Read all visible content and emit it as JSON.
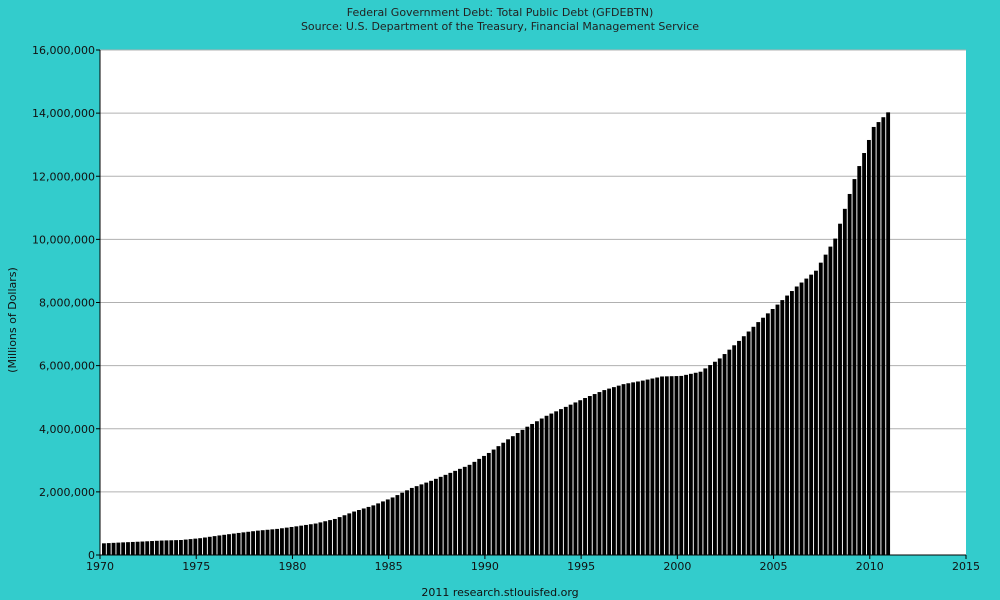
{
  "chart_data": {
    "type": "bar",
    "title": "Federal Government Debt: Total Public Debt (GFDEBTN)",
    "subtitle": "Source: U.S. Department of the Treasury, Financial Management Service",
    "ylabel": "(Millions of Dollars)",
    "xlabel": "",
    "credit": "2011 research.stlouisfed.org",
    "xlim": [
      1970,
      2015
    ],
    "ylim": [
      0,
      16000000
    ],
    "x_ticks": [
      "1970",
      "1975",
      "1980",
      "1985",
      "1990",
      "1995",
      "2000",
      "2005",
      "2010",
      "2015"
    ],
    "y_ticks": [
      "0",
      "2,000,000",
      "4,000,000",
      "6,000,000",
      "8,000,000",
      "10,000,000",
      "12,000,000",
      "14,000,000",
      "16,000,000"
    ],
    "grid": true,
    "frequency": "quarterly",
    "bar_color": "#000000",
    "plot_background": "#ffffff",
    "page_background": "#33cccc",
    "annual_anchors": [
      {
        "year": 1970,
        "value": 370000
      },
      {
        "year": 1971,
        "value": 400000
      },
      {
        "year": 1972,
        "value": 427000
      },
      {
        "year": 1973,
        "value": 458000
      },
      {
        "year": 1974,
        "value": 475000
      },
      {
        "year": 1975,
        "value": 533000
      },
      {
        "year": 1976,
        "value": 620000
      },
      {
        "year": 1977,
        "value": 699000
      },
      {
        "year": 1978,
        "value": 772000
      },
      {
        "year": 1979,
        "value": 827000
      },
      {
        "year": 1980,
        "value": 908000
      },
      {
        "year": 1981,
        "value": 997000
      },
      {
        "year": 1982,
        "value": 1142000
      },
      {
        "year": 1983,
        "value": 1377000
      },
      {
        "year": 1984,
        "value": 1572000
      },
      {
        "year": 1985,
        "value": 1823000
      },
      {
        "year": 1986,
        "value": 2125000
      },
      {
        "year": 1987,
        "value": 2350000
      },
      {
        "year": 1988,
        "value": 2602000
      },
      {
        "year": 1989,
        "value": 2857000
      },
      {
        "year": 1990,
        "value": 3233000
      },
      {
        "year": 1991,
        "value": 3665000
      },
      {
        "year": 1992,
        "value": 4065000
      },
      {
        "year": 1993,
        "value": 4411000
      },
      {
        "year": 1994,
        "value": 4693000
      },
      {
        "year": 1995,
        "value": 4974000
      },
      {
        "year": 1996,
        "value": 5225000
      },
      {
        "year": 1997,
        "value": 5413000
      },
      {
        "year": 1998,
        "value": 5526000
      },
      {
        "year": 1999,
        "value": 5656000
      },
      {
        "year": 2000,
        "value": 5674000
      },
      {
        "year": 2001,
        "value": 5807000
      },
      {
        "year": 2002,
        "value": 6228000
      },
      {
        "year": 2003,
        "value": 6783000
      },
      {
        "year": 2004,
        "value": 7379000
      },
      {
        "year": 2005,
        "value": 7933000
      },
      {
        "year": 2006,
        "value": 8507000
      },
      {
        "year": 2007,
        "value": 9008000
      },
      {
        "year": 2008,
        "value": 10025000
      },
      {
        "year": 2009,
        "value": 11910000
      },
      {
        "year": 2010,
        "value": 13562000
      },
      {
        "year": 2010.75,
        "value": 14025000
      }
    ]
  }
}
